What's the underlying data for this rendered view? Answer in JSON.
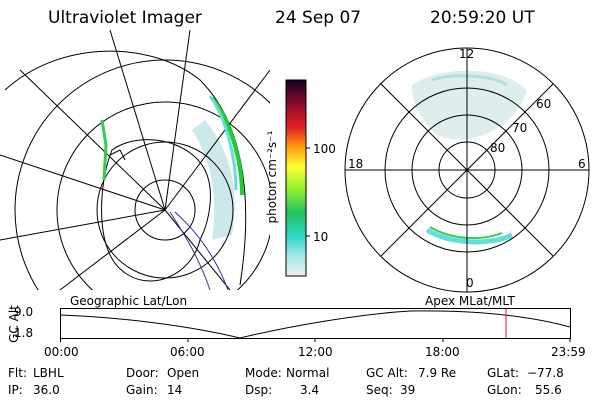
{
  "header": {
    "instrument": "Ultraviolet Imager",
    "date": "24 Sep 07",
    "time": "20:59:20 UT"
  },
  "colorbar": {
    "unit_label": "photon cm⁻²s⁻¹",
    "ticks": [
      "100",
      "10"
    ]
  },
  "polar_plot": {
    "mlt_labels": {
      "top": "12",
      "left": "18",
      "right": "6",
      "bottom": "0"
    },
    "lat_labels": [
      "60",
      "70",
      "80"
    ]
  },
  "altitude_panel": {
    "left_label": "Geographic Lat/Lon",
    "right_label": "Apex MLat/MLT",
    "y_axis_label": "GC Alt",
    "y_ticks": [
      "9.0",
      "1.8"
    ],
    "x_ticks": [
      "00:00",
      "06:00",
      "12:00",
      "18:00",
      "23:59"
    ]
  },
  "info": {
    "row1": [
      {
        "label": "Flt:",
        "value": "LBHL"
      },
      {
        "label": "Door:",
        "value": "Open"
      },
      {
        "label": "Mode:",
        "value": "Normal"
      },
      {
        "label": "GC Alt:",
        "value": "7.9 Re"
      },
      {
        "label": "GLat:",
        "value": "−77.8"
      }
    ],
    "row2": [
      {
        "label": "IP:",
        "value": "36.0"
      },
      {
        "label": "Gain:",
        "value": "14"
      },
      {
        "label": "Dsp:",
        "value": "3.4"
      },
      {
        "label": "Seq:",
        "value": "39"
      },
      {
        "label": "GLon:",
        "value": "55.6"
      }
    ]
  },
  "colors": {
    "aurora_green": "#22cc33",
    "aurora_cyan": "#66dddd",
    "marker_red": "#dd2222"
  }
}
